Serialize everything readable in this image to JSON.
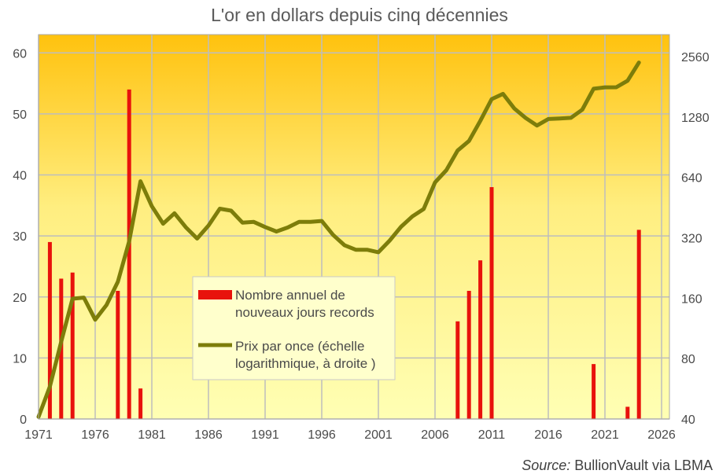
{
  "chart_data": {
    "type": "bar+line",
    "title": "L'or en dollars depuis cinq décennies",
    "source_label": "Source:",
    "source_text": " BullionVault via LBMA",
    "x_ticks": [
      "1971",
      "1976",
      "1981",
      "1986",
      "1991",
      "1996",
      "2001",
      "2006",
      "2011",
      "2016",
      "2021",
      "2026"
    ],
    "y_left_ticks": [
      "0",
      "10",
      "20",
      "30",
      "40",
      "50",
      "60"
    ],
    "y_right_ticks": [
      "40",
      "80",
      "160",
      "320",
      "640",
      "1280",
      "2560"
    ],
    "xlim": [
      1971,
      2027
    ],
    "ylim_left": [
      0,
      63
    ],
    "ylim_right_log2": [
      40,
      2560
    ],
    "grid": true,
    "legend_position": "center",
    "colors": {
      "bars": "#e8120c",
      "line": "#7d7d0a",
      "grid": "#bdbdbd",
      "bg_top": "#ffc20e",
      "bg_bottom": "#ffffb4"
    },
    "series": [
      {
        "name": "Nombre annuel de nouveaux jours records",
        "kind": "bar",
        "axis": "left",
        "points": [
          [
            1972,
            29
          ],
          [
            1973,
            23
          ],
          [
            1974,
            24
          ],
          [
            1978,
            21
          ],
          [
            1979,
            54
          ],
          [
            1980,
            5
          ],
          [
            2008,
            16
          ],
          [
            2009,
            21
          ],
          [
            2010,
            26
          ],
          [
            2011,
            38
          ],
          [
            2020,
            9
          ],
          [
            2023,
            2
          ],
          [
            2024,
            31
          ]
        ]
      },
      {
        "name": "Prix par once (échelle logarithmique, à droite )",
        "kind": "line",
        "axis": "right",
        "points": [
          [
            1971,
            41
          ],
          [
            1972,
            58
          ],
          [
            1973,
            97
          ],
          [
            1974,
            159
          ],
          [
            1975,
            161
          ],
          [
            1976,
            125
          ],
          [
            1977,
            148
          ],
          [
            1978,
            193
          ],
          [
            1979,
            307
          ],
          [
            1980,
            612
          ],
          [
            1981,
            460
          ],
          [
            1982,
            376
          ],
          [
            1983,
            424
          ],
          [
            1984,
            361
          ],
          [
            1985,
            317
          ],
          [
            1986,
            368
          ],
          [
            1987,
            447
          ],
          [
            1988,
            437
          ],
          [
            1989,
            381
          ],
          [
            1990,
            384
          ],
          [
            1991,
            362
          ],
          [
            1992,
            344
          ],
          [
            1993,
            360
          ],
          [
            1994,
            384
          ],
          [
            1995,
            384
          ],
          [
            1996,
            388
          ],
          [
            1997,
            331
          ],
          [
            1998,
            294
          ],
          [
            1999,
            279
          ],
          [
            2000,
            279
          ],
          [
            2001,
            271
          ],
          [
            2002,
            310
          ],
          [
            2003,
            363
          ],
          [
            2004,
            409
          ],
          [
            2005,
            445
          ],
          [
            2006,
            604
          ],
          [
            2007,
            695
          ],
          [
            2008,
            872
          ],
          [
            2009,
            972
          ],
          [
            2010,
            1225
          ],
          [
            2011,
            1572
          ],
          [
            2012,
            1669
          ],
          [
            2013,
            1411
          ],
          [
            2014,
            1266
          ],
          [
            2015,
            1160
          ],
          [
            2016,
            1251
          ],
          [
            2017,
            1257
          ],
          [
            2018,
            1268
          ],
          [
            2019,
            1393
          ],
          [
            2020,
            1770
          ],
          [
            2021,
            1799
          ],
          [
            2022,
            1800
          ],
          [
            2023,
            1941
          ],
          [
            2024,
            2390
          ]
        ]
      }
    ]
  }
}
